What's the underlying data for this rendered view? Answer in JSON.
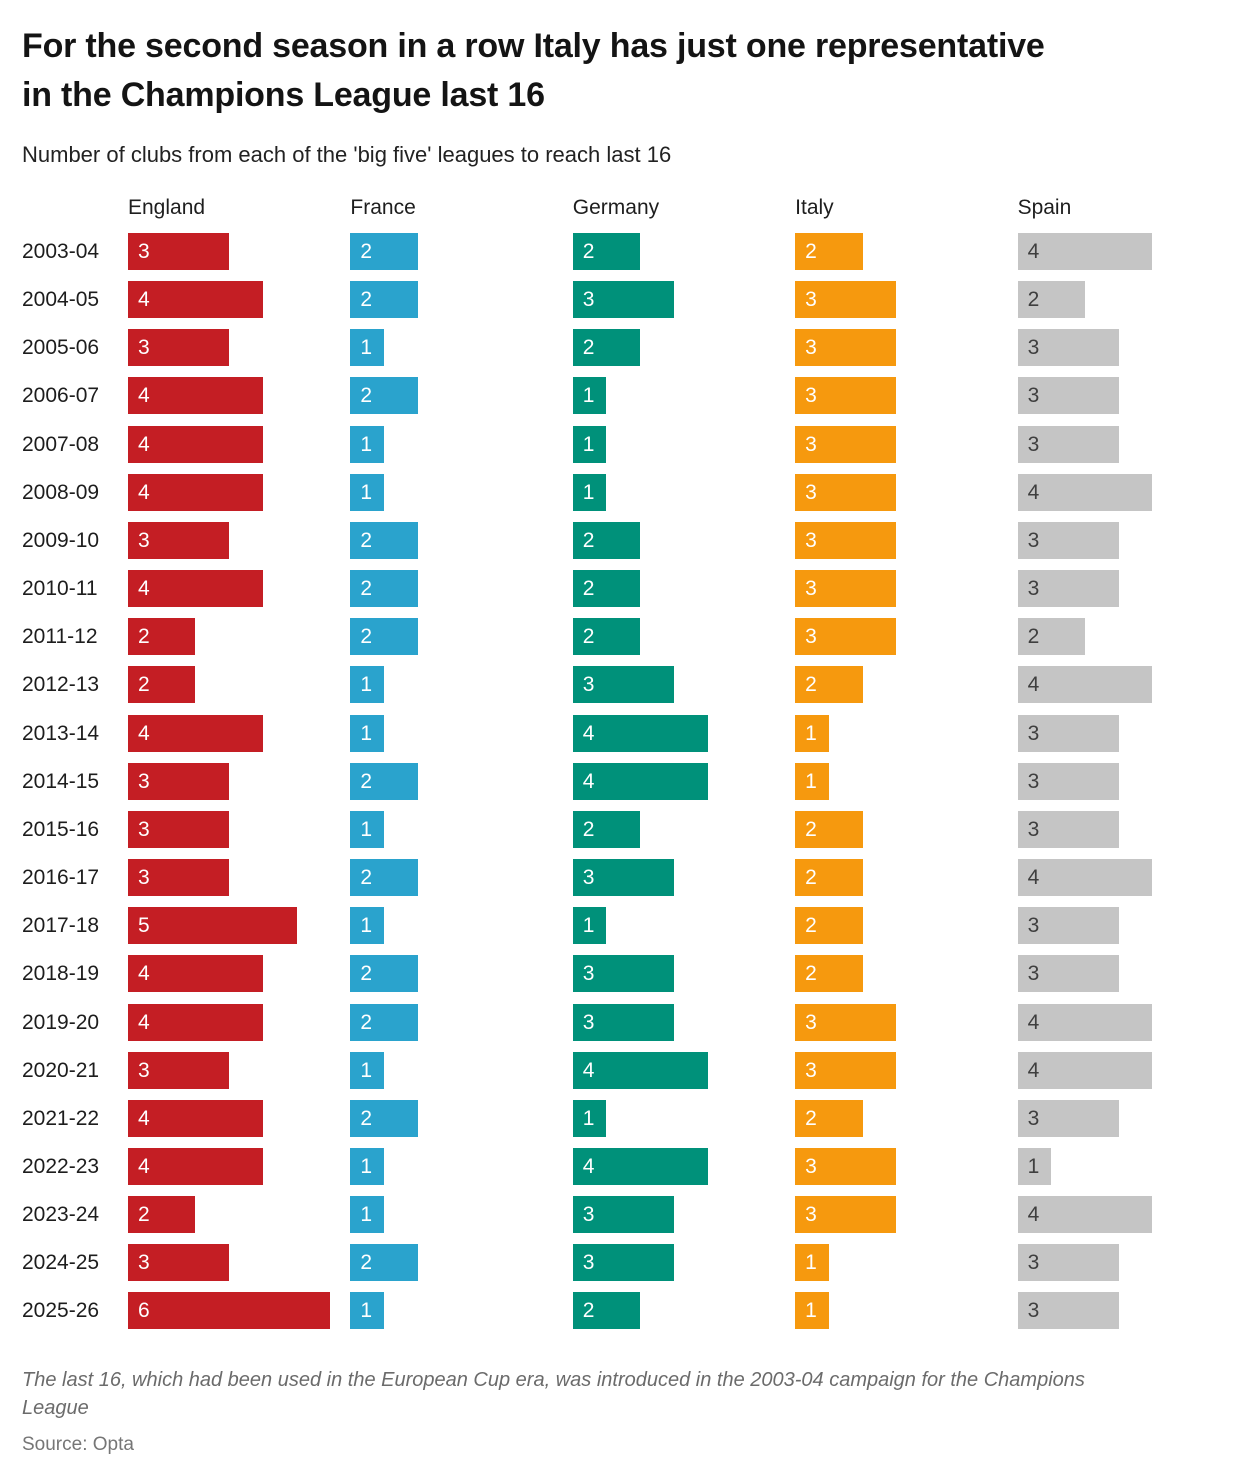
{
  "header": {
    "title": "For the second season in a row Italy has just one representative in the Champions League last 16",
    "subtitle": "Number of clubs from each of the 'big five' leagues to reach last 16"
  },
  "footer": {
    "note": "The last 16, which had been used in the European Cup era, was introduced in the 2003-04 campaign for the Champions League",
    "source": "Source: Opta"
  },
  "chart_data": {
    "type": "bar",
    "orientation": "horizontal",
    "title": "For the second season in a row Italy has just one representative in the Champions League last 16",
    "subtitle": "Number of clubs from each of the 'big five' leagues to reach last 16",
    "value_label": "clubs reaching last 16",
    "value_range": [
      0,
      6
    ],
    "grid": false,
    "legend_position": "column-headers",
    "categories": [
      "2003-04",
      "2004-05",
      "2005-06",
      "2006-07",
      "2007-08",
      "2008-09",
      "2009-10",
      "2010-11",
      "2011-12",
      "2012-13",
      "2013-14",
      "2014-15",
      "2015-16",
      "2016-17",
      "2017-18",
      "2018-19",
      "2019-20",
      "2020-21",
      "2021-22",
      "2022-23",
      "2023-24",
      "2024-25",
      "2025-26"
    ],
    "series": [
      {
        "name": "England",
        "color": "#c41e24",
        "label_color": "#ffffff",
        "values": [
          3,
          4,
          3,
          4,
          4,
          4,
          3,
          4,
          2,
          2,
          4,
          3,
          3,
          3,
          5,
          4,
          4,
          3,
          4,
          4,
          2,
          3,
          6
        ]
      },
      {
        "name": "France",
        "color": "#2aa3cd",
        "label_color": "#ffffff",
        "values": [
          2,
          2,
          1,
          2,
          1,
          1,
          2,
          2,
          2,
          1,
          1,
          2,
          1,
          2,
          1,
          2,
          2,
          1,
          2,
          1,
          1,
          2,
          1
        ]
      },
      {
        "name": "Germany",
        "color": "#00917a",
        "label_color": "#ffffff",
        "values": [
          2,
          3,
          2,
          1,
          1,
          1,
          2,
          2,
          2,
          3,
          4,
          4,
          2,
          3,
          1,
          3,
          3,
          4,
          1,
          4,
          3,
          3,
          2
        ]
      },
      {
        "name": "Italy",
        "color": "#f6990e",
        "label_color": "#ffffff",
        "values": [
          2,
          3,
          3,
          3,
          3,
          3,
          3,
          3,
          3,
          2,
          1,
          1,
          2,
          2,
          2,
          2,
          3,
          3,
          2,
          3,
          3,
          1,
          1
        ]
      },
      {
        "name": "Spain",
        "color": "#c5c5c5",
        "label_color": "#3f3f3f",
        "values": [
          4,
          2,
          3,
          3,
          3,
          4,
          3,
          3,
          2,
          4,
          3,
          3,
          3,
          4,
          3,
          3,
          4,
          4,
          3,
          1,
          4,
          3,
          3
        ]
      }
    ]
  }
}
